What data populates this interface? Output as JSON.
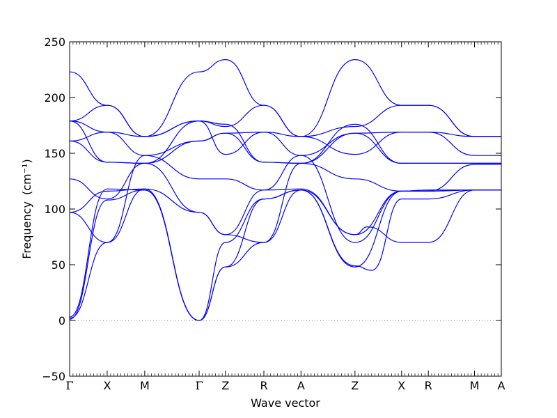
{
  "chart_data": {
    "type": "line",
    "title": "",
    "xlabel": "Wave vector",
    "ylabel": "Frequency",
    "ylabel_unit": "(cm⁻¹)",
    "ylim": [
      -50,
      250
    ],
    "yticks": [
      -50,
      0,
      50,
      100,
      150,
      200,
      250
    ],
    "xlim": [
      0,
      1
    ],
    "grid": false,
    "line_color": "#0000ff",
    "zero_line": true,
    "zero_line_color": "#7f7f7f",
    "high_symmetry_points": [
      {
        "label": "Γ",
        "x": 0.0
      },
      {
        "label": "X",
        "x": 0.087
      },
      {
        "label": "M",
        "x": 0.174
      },
      {
        "label": "Γ",
        "x": 0.3
      },
      {
        "label": "Z",
        "x": 0.361
      },
      {
        "label": "R",
        "x": 0.45
      },
      {
        "label": "A",
        "x": 0.536
      },
      {
        "label": "Z",
        "x": 0.661
      },
      {
        "label": "X",
        "x": 0.769
      },
      {
        "label": "R",
        "x": 0.831
      },
      {
        "label": "M",
        "x": 0.938
      },
      {
        "label": "A",
        "x": 1.0
      }
    ],
    "bands": [
      {
        "points": [
          [
            0,
            1
          ],
          [
            0.087,
            108
          ],
          [
            0.174,
            117
          ],
          [
            0.3,
            0
          ],
          [
            0.361,
            48
          ],
          [
            0.45,
            70
          ],
          [
            0.536,
            117
          ],
          [
            0.661,
            77
          ],
          [
            0.69,
            84
          ],
          [
            0.769,
            70
          ],
          [
            0.831,
            70
          ],
          [
            0.938,
            117
          ],
          [
            1.0,
            117
          ]
        ]
      },
      {
        "points": [
          [
            0,
            2
          ],
          [
            0.087,
            70
          ],
          [
            0.174,
            118
          ],
          [
            0.3,
            0
          ],
          [
            0.361,
            48
          ],
          [
            0.45,
            109
          ],
          [
            0.536,
            117
          ],
          [
            0.661,
            49
          ],
          [
            0.7,
            45
          ],
          [
            0.769,
            109
          ],
          [
            0.831,
            109
          ],
          [
            0.938,
            117
          ],
          [
            1.0,
            117
          ]
        ]
      },
      {
        "points": [
          [
            0,
            3
          ],
          [
            0.087,
            118
          ],
          [
            0.174,
            117
          ],
          [
            0.3,
            0
          ],
          [
            0.361,
            70
          ],
          [
            0.45,
            109
          ],
          [
            0.536,
            117
          ],
          [
            0.661,
            48
          ],
          [
            0.769,
            116
          ],
          [
            0.831,
            116
          ],
          [
            0.938,
            117
          ],
          [
            1.0,
            117
          ]
        ]
      },
      {
        "points": [
          [
            0,
            97
          ],
          [
            0.087,
            70
          ],
          [
            0.174,
            148
          ],
          [
            0.3,
            127
          ],
          [
            0.361,
            127
          ],
          [
            0.45,
            117
          ],
          [
            0.536,
            148
          ],
          [
            0.661,
            70
          ],
          [
            0.769,
            116
          ],
          [
            0.831,
            117
          ],
          [
            0.938,
            117
          ],
          [
            1.0,
            117
          ]
        ]
      },
      {
        "points": [
          [
            0,
            97
          ],
          [
            0.087,
            116
          ],
          [
            0.174,
            118
          ],
          [
            0.3,
            97
          ],
          [
            0.361,
            77
          ],
          [
            0.45,
            117
          ],
          [
            0.536,
            118
          ],
          [
            0.661,
            77
          ],
          [
            0.769,
            116
          ],
          [
            0.831,
            117
          ],
          [
            0.938,
            117
          ],
          [
            1.0,
            117
          ]
        ]
      },
      {
        "points": [
          [
            0,
            127
          ],
          [
            0.087,
            109
          ],
          [
            0.174,
            141
          ],
          [
            0.3,
            97
          ],
          [
            0.361,
            77
          ],
          [
            0.45,
            70
          ],
          [
            0.536,
            141
          ],
          [
            0.661,
            127
          ],
          [
            0.769,
            116
          ],
          [
            0.831,
            116
          ],
          [
            0.938,
            140
          ],
          [
            1.0,
            140
          ]
        ]
      },
      {
        "points": [
          [
            0,
            161
          ],
          [
            0.087,
            142
          ],
          [
            0.174,
            141
          ],
          [
            0.3,
            161
          ],
          [
            0.361,
            168
          ],
          [
            0.45,
            142
          ],
          [
            0.536,
            141
          ],
          [
            0.661,
            168
          ],
          [
            0.769,
            141
          ],
          [
            0.831,
            141
          ],
          [
            0.938,
            141
          ],
          [
            1.0,
            141
          ]
        ]
      },
      {
        "points": [
          [
            0,
            161
          ],
          [
            0.087,
            169
          ],
          [
            0.174,
            148
          ],
          [
            0.3,
            161
          ],
          [
            0.361,
            168
          ],
          [
            0.45,
            169
          ],
          [
            0.536,
            148
          ],
          [
            0.661,
            168
          ],
          [
            0.769,
            169
          ],
          [
            0.831,
            169
          ],
          [
            0.938,
            148
          ],
          [
            1.0,
            148
          ]
        ]
      },
      {
        "points": [
          [
            0,
            179
          ],
          [
            0.087,
            142
          ],
          [
            0.174,
            141
          ],
          [
            0.3,
            179
          ],
          [
            0.361,
            176
          ],
          [
            0.45,
            142
          ],
          [
            0.536,
            141
          ],
          [
            0.661,
            176
          ],
          [
            0.769,
            141
          ],
          [
            0.831,
            141
          ],
          [
            0.938,
            141
          ],
          [
            1.0,
            141
          ]
        ]
      },
      {
        "points": [
          [
            0,
            179
          ],
          [
            0.087,
            169
          ],
          [
            0.174,
            165
          ],
          [
            0.3,
            179
          ],
          [
            0.361,
            149
          ],
          [
            0.45,
            169
          ],
          [
            0.536,
            165
          ],
          [
            0.661,
            149
          ],
          [
            0.769,
            169
          ],
          [
            0.831,
            169
          ],
          [
            0.938,
            165
          ],
          [
            1.0,
            165
          ]
        ]
      },
      {
        "points": [
          [
            0,
            179
          ],
          [
            0.087,
            193
          ],
          [
            0.174,
            165
          ],
          [
            0.3,
            179
          ],
          [
            0.361,
            174
          ],
          [
            0.45,
            193
          ],
          [
            0.536,
            165
          ],
          [
            0.661,
            174
          ],
          [
            0.769,
            193
          ],
          [
            0.831,
            193
          ],
          [
            0.938,
            165
          ],
          [
            1.0,
            165
          ]
        ]
      },
      {
        "points": [
          [
            0,
            223
          ],
          [
            0.087,
            193
          ],
          [
            0.174,
            165
          ],
          [
            0.3,
            223
          ],
          [
            0.361,
            234
          ],
          [
            0.45,
            193
          ],
          [
            0.536,
            165
          ],
          [
            0.661,
            234
          ],
          [
            0.769,
            193
          ],
          [
            0.831,
            193
          ],
          [
            0.938,
            165
          ],
          [
            1.0,
            165
          ]
        ]
      }
    ]
  }
}
